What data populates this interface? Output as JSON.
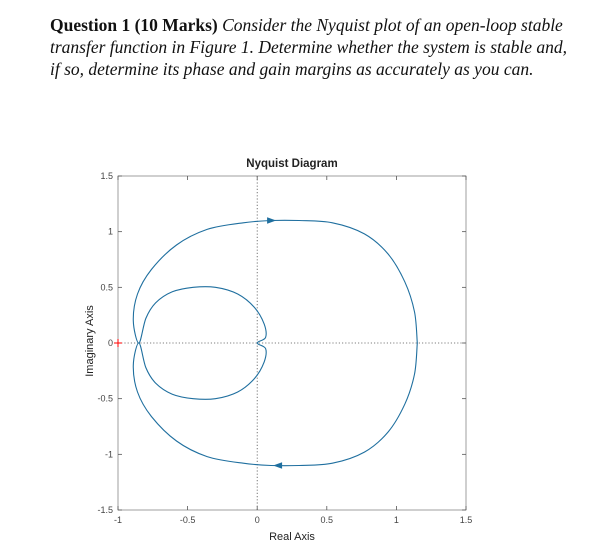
{
  "question": {
    "heading": "Question 1 (10 Marks)",
    "body": "Consider the Nyquist plot of an open-loop stable transfer function in Figure 1. Determine whether the system is stable and, if so, determine its phase and gain margins as accurately as you can."
  },
  "chart_data": {
    "type": "line",
    "title": "Nyquist Diagram",
    "xlabel": "Real Axis",
    "ylabel": "Imaginary Axis",
    "xlim": [
      -1,
      1.5
    ],
    "ylim": [
      -1.5,
      1.5
    ],
    "xticks": [
      -1,
      -0.5,
      0,
      0.5,
      1,
      1.5
    ],
    "xtick_labels": [
      "-1",
      "-0.5",
      "0",
      "0.5",
      "1",
      "1.5"
    ],
    "yticks": [
      1.5,
      1,
      0.5,
      0,
      -0.5,
      -1,
      -1.5
    ],
    "ytick_labels": [
      "1.5",
      "1",
      "0.5",
      "0",
      "-0.5",
      "-1",
      "-1.5"
    ],
    "grid": false,
    "legend": "none",
    "series_color": "#1f6f9f",
    "critical_point": {
      "x": -1,
      "y": 0,
      "marker": "+",
      "color": "#ff0000"
    },
    "axis_lines_color": "#555555",
    "series": [
      {
        "closed": true,
        "points": [
          [
            1.15,
            0.0
          ],
          [
            1.13,
            0.28
          ],
          [
            1.06,
            0.55
          ],
          [
            0.94,
            0.8
          ],
          [
            0.77,
            0.98
          ],
          [
            0.54,
            1.08
          ],
          [
            0.3,
            1.1
          ],
          [
            0.1,
            1.1
          ],
          [
            -0.1,
            1.08
          ],
          [
            -0.36,
            1.02
          ],
          [
            -0.58,
            0.88
          ],
          [
            -0.76,
            0.66
          ],
          [
            -0.86,
            0.44
          ],
          [
            -0.89,
            0.2
          ],
          [
            -0.85,
            0.0
          ],
          [
            -0.8,
            0.22
          ],
          [
            -0.73,
            0.36
          ],
          [
            -0.61,
            0.46
          ],
          [
            -0.46,
            0.5
          ],
          [
            -0.3,
            0.5
          ],
          [
            -0.14,
            0.44
          ],
          [
            -0.02,
            0.32
          ],
          [
            0.05,
            0.17
          ],
          [
            0.06,
            0.05
          ],
          [
            0.0,
            0.0
          ],
          [
            0.06,
            -0.05
          ],
          [
            0.05,
            -0.17
          ],
          [
            -0.02,
            -0.32
          ],
          [
            -0.14,
            -0.44
          ],
          [
            -0.3,
            -0.5
          ],
          [
            -0.46,
            -0.5
          ],
          [
            -0.61,
            -0.46
          ],
          [
            -0.73,
            -0.36
          ],
          [
            -0.8,
            -0.22
          ],
          [
            -0.85,
            0.0
          ],
          [
            -0.89,
            -0.2
          ],
          [
            -0.86,
            -0.44
          ],
          [
            -0.76,
            -0.66
          ],
          [
            -0.58,
            -0.88
          ],
          [
            -0.36,
            -1.02
          ],
          [
            -0.1,
            -1.08
          ],
          [
            0.1,
            -1.1
          ],
          [
            0.3,
            -1.1
          ],
          [
            0.54,
            -1.08
          ],
          [
            0.77,
            -0.98
          ],
          [
            0.94,
            -0.8
          ],
          [
            1.06,
            -0.55
          ],
          [
            1.13,
            -0.28
          ],
          [
            1.15,
            0.0
          ]
        ]
      }
    ],
    "arrows": [
      {
        "x": 0.1,
        "y": 1.1,
        "direction": "right"
      },
      {
        "x": 0.15,
        "y": -1.1,
        "direction": "left"
      }
    ]
  }
}
